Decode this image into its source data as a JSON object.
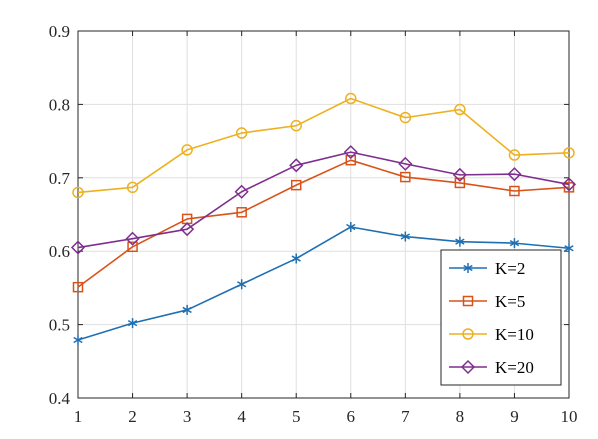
{
  "chart_data": {
    "type": "line",
    "title": "",
    "xlabel": "",
    "ylabel": "",
    "x": [
      1,
      2,
      3,
      4,
      5,
      6,
      7,
      8,
      9,
      10
    ],
    "xlim": [
      1,
      10
    ],
    "ylim": [
      0.4,
      0.9
    ],
    "x_ticks": [
      "1",
      "2",
      "3",
      "4",
      "5",
      "6",
      "7",
      "8",
      "9",
      "10"
    ],
    "y_ticks": [
      "0.4",
      "0.5",
      "0.6",
      "0.7",
      "0.8",
      "0.9"
    ],
    "grid": true,
    "legend_position": "bottom-right",
    "series": [
      {
        "name": "K=2",
        "marker": "asterisk",
        "color": "#1f6fb2",
        "values": [
          0.479,
          0.502,
          0.52,
          0.555,
          0.59,
          0.633,
          0.62,
          0.613,
          0.611,
          0.604
        ]
      },
      {
        "name": "K=5",
        "marker": "square",
        "color": "#d95319",
        "values": [
          0.551,
          0.606,
          0.644,
          0.653,
          0.69,
          0.724,
          0.701,
          0.693,
          0.682,
          0.687
        ]
      },
      {
        "name": "K=10",
        "marker": "circle",
        "color": "#edb120",
        "values": [
          0.68,
          0.687,
          0.738,
          0.761,
          0.771,
          0.808,
          0.782,
          0.793,
          0.731,
          0.734
        ]
      },
      {
        "name": "K=20",
        "marker": "diamond",
        "color": "#7e2f8e",
        "values": [
          0.605,
          0.617,
          0.63,
          0.681,
          0.717,
          0.735,
          0.719,
          0.704,
          0.705,
          0.691
        ]
      }
    ]
  }
}
